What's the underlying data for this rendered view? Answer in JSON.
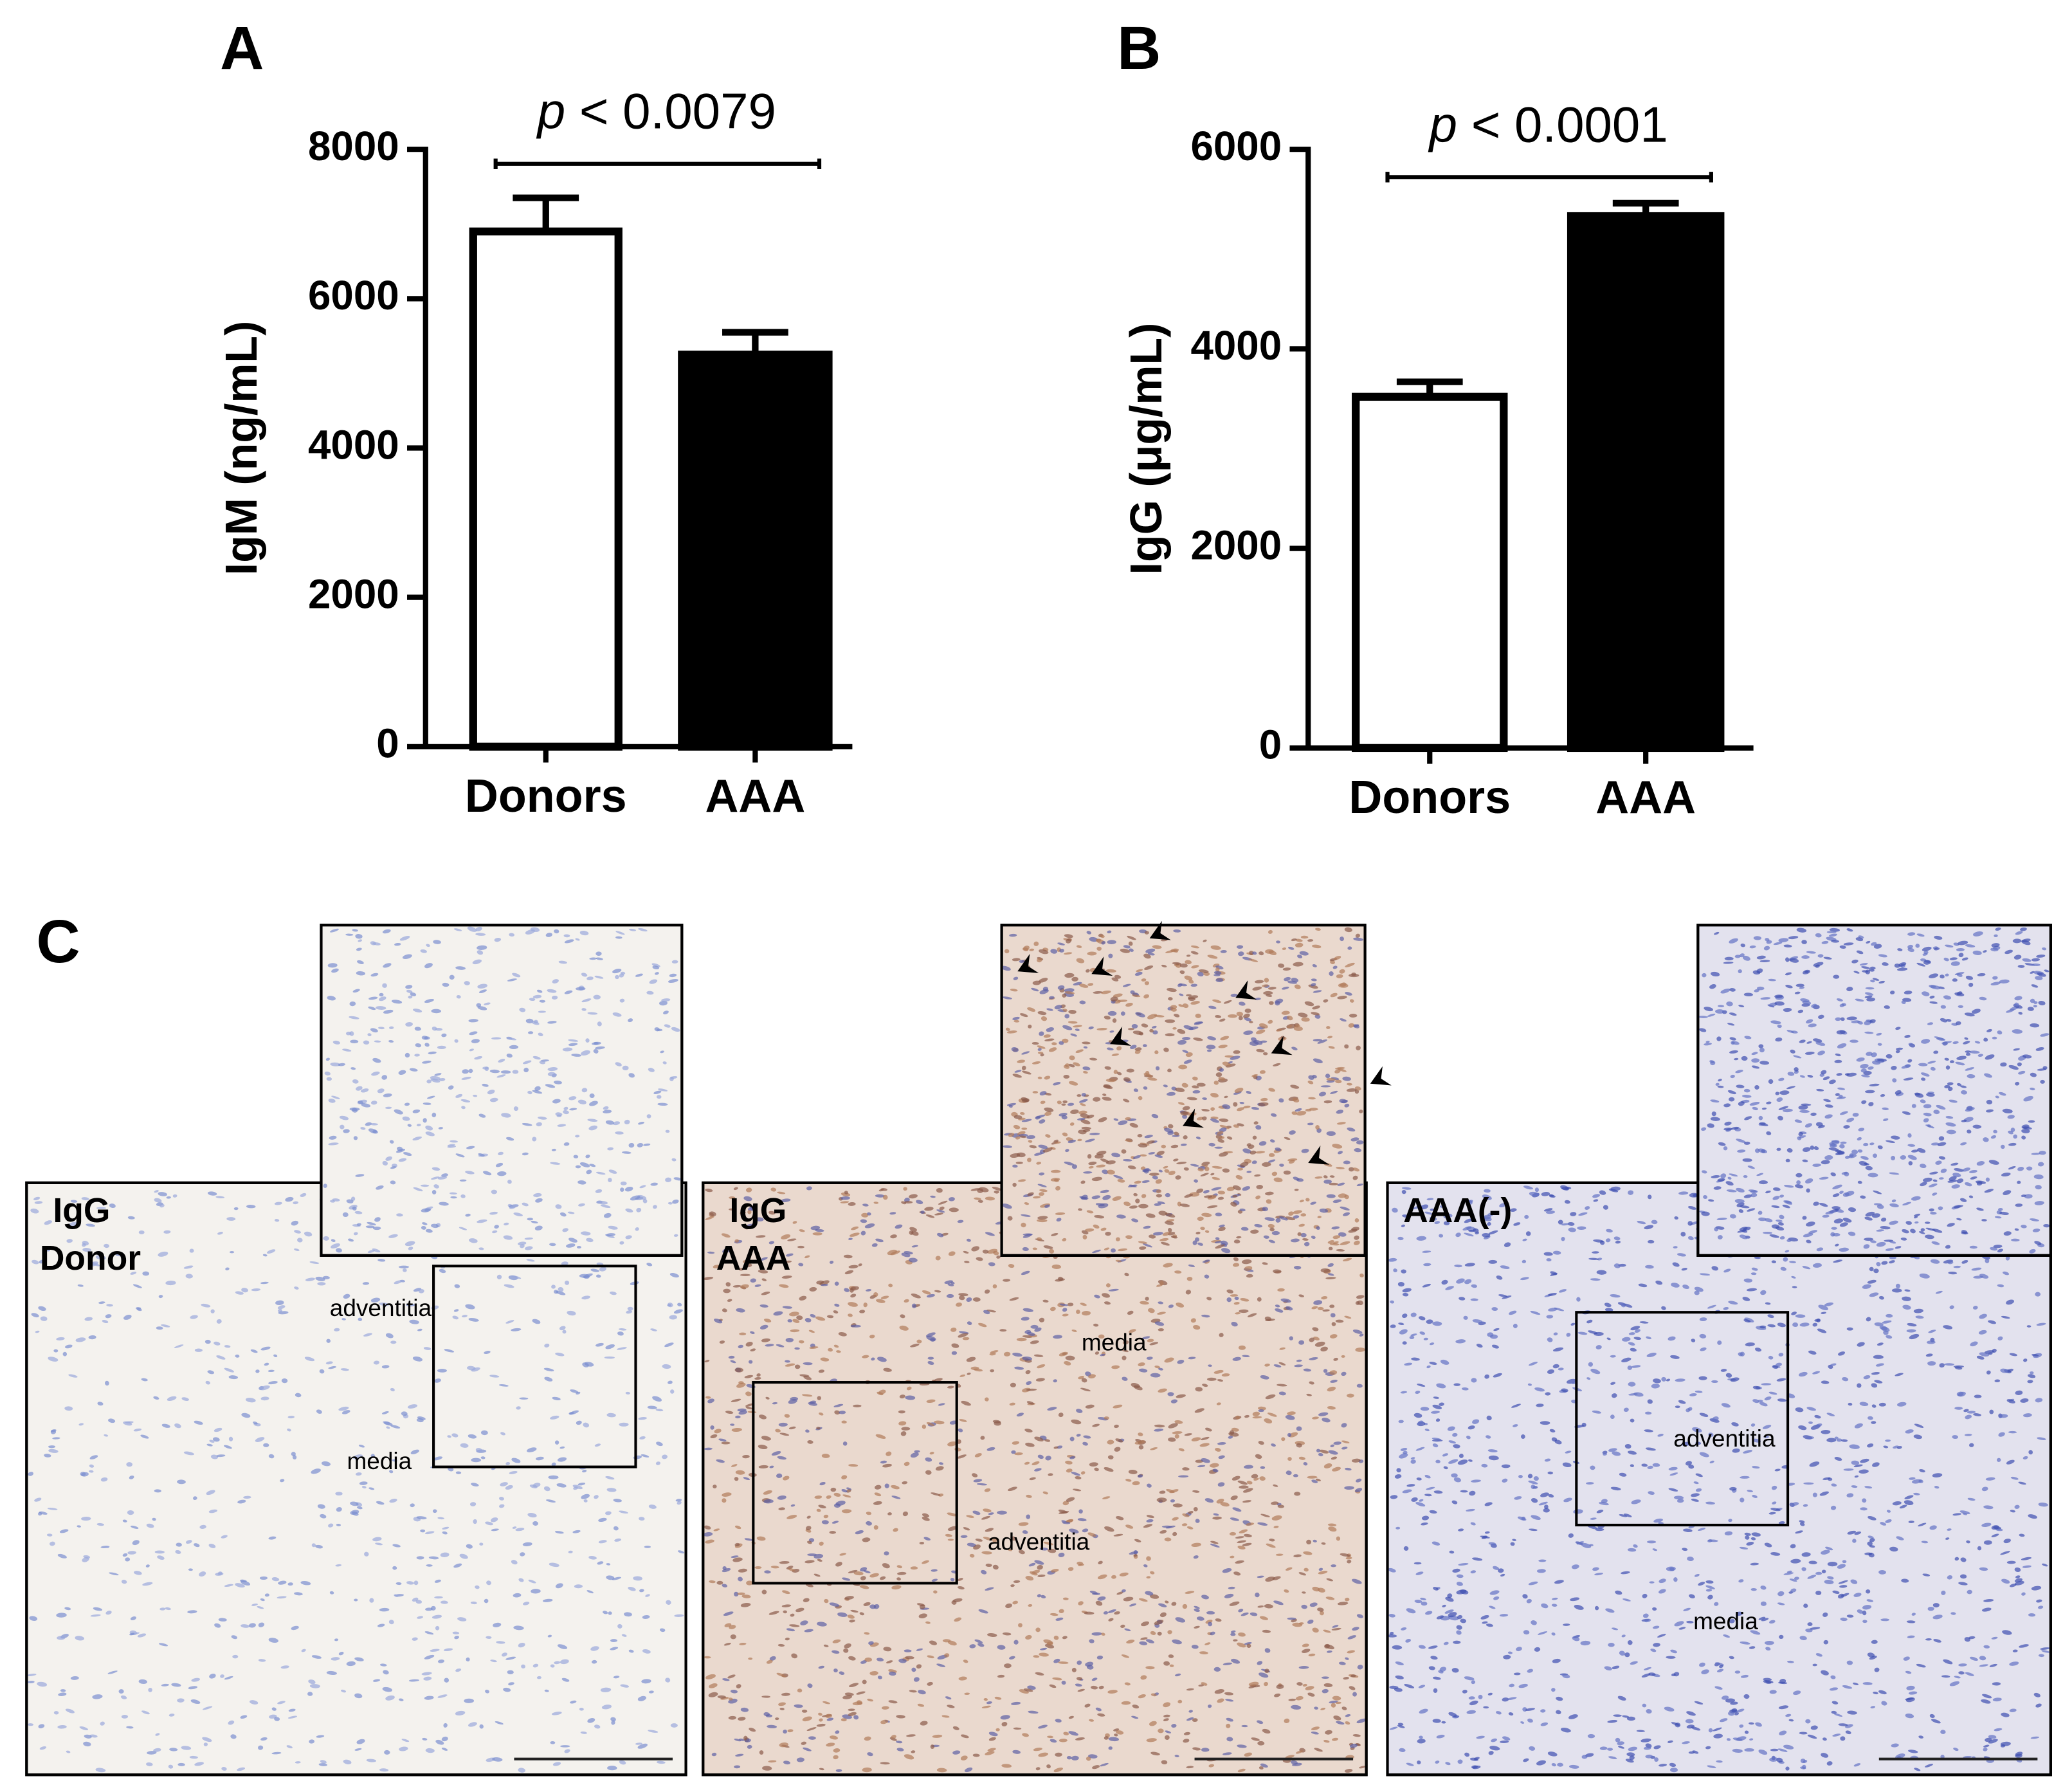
{
  "chart_data": [
    {
      "type": "bar",
      "title": "A",
      "y_label": "IgM (ng/mL)",
      "annotation": "p < 0.0079",
      "categories": [
        "Donors",
        "AAA"
      ],
      "values": [
        6900,
        5250
      ],
      "errors": [
        450,
        300
      ],
      "colors": [
        "#ffffff",
        "#000000"
      ],
      "ylim": [
        0,
        8000
      ],
      "yticks": [
        0,
        2000,
        4000,
        6000,
        8000
      ]
    },
    {
      "type": "bar",
      "title": "B",
      "y_label": "IgG (μg/mL)",
      "annotation": "p < 0.0001",
      "categories": [
        "Donors",
        "AAA"
      ],
      "values": [
        3520,
        5330
      ],
      "errors": [
        150,
        130
      ],
      "colors": [
        "#ffffff",
        "#000000"
      ],
      "ylim": [
        0,
        6000
      ],
      "yticks": [
        0,
        2000,
        4000,
        6000
      ]
    }
  ],
  "panel_c": {
    "title": "C",
    "panels": [
      {
        "label": [
          "IgG",
          "Donor"
        ],
        "annotations": [
          "adventitia",
          "media"
        ]
      },
      {
        "label": [
          "IgG",
          "AAA"
        ],
        "annotations": [
          "media",
          "adventitia"
        ]
      },
      {
        "label": [
          "AAA(-)"
        ],
        "annotations": [
          "adventitia",
          "media"
        ]
      }
    ]
  }
}
